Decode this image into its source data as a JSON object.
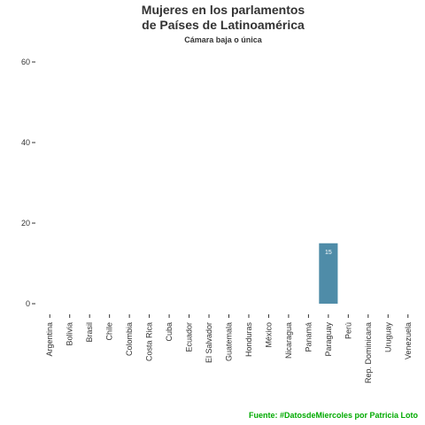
{
  "chart_data": {
    "type": "bar",
    "title_lines": [
      "Mujeres en los parlamentos",
      "de Países de Latinoamérica"
    ],
    "subtitle": "Cámara baja o única",
    "caption": "Fuente: #DatosdeMiercoles por Patricia Loto",
    "categories": [
      "Argentina",
      "Bolivia",
      "Brasil",
      "Chile",
      "Colombia",
      "Costa Rica",
      "Cuba",
      "Ecuador",
      "El Salvador",
      "Guatemala",
      "Honduras",
      "México",
      "Nicaragua",
      "Panamá",
      "Paraguay",
      "Perú",
      "Rep. Dominicana",
      "Uruguay",
      "Venezuela"
    ],
    "values": [
      0,
      0,
      0,
      0,
      0,
      0,
      0,
      0,
      0,
      0,
      0,
      0,
      0,
      0,
      15,
      0,
      0,
      0,
      0
    ],
    "data_labels": {
      "14": "15"
    },
    "ylim": [
      0,
      60
    ],
    "yticks": [
      0,
      20,
      40,
      60
    ],
    "ytick_labels": [
      "0",
      "20",
      "40",
      "60"
    ],
    "grid": false,
    "colors": {
      "bar": "#4f8ca8",
      "caption": "#00aa00",
      "text": "#333333",
      "axis": "#333333"
    }
  }
}
